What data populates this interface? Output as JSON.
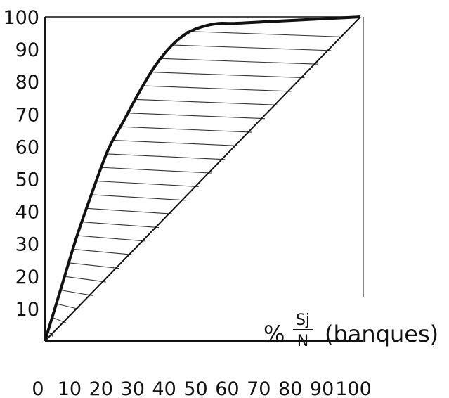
{
  "chart_data": {
    "type": "line",
    "title": "",
    "xlabel": {
      "percent": "%",
      "numerator": "Sj",
      "denominator": "N",
      "suffix": "(banques)"
    },
    "ylabel": "",
    "xlim": [
      0,
      100
    ],
    "ylim": [
      0,
      100
    ],
    "x_ticks": [
      "0",
      "10",
      "20",
      "30",
      "40",
      "50",
      "60",
      "70",
      "80",
      "90",
      "100"
    ],
    "y_ticks": [
      "10",
      "20",
      "30",
      "40",
      "50",
      "60",
      "70",
      "80",
      "90",
      "100"
    ],
    "grid": false,
    "hatched_region": true,
    "series": [
      {
        "kind": "concentration-curve",
        "x": [
          0,
          5,
          10,
          15,
          20,
          25,
          30,
          35,
          40,
          45,
          50,
          55,
          60,
          70,
          80,
          90,
          100
        ],
        "y": [
          0,
          16,
          32,
          46,
          59,
          68,
          77,
          85,
          91,
          95,
          97,
          98,
          98,
          98.5,
          99,
          99.5,
          100
        ]
      },
      {
        "kind": "diagonal",
        "x": [
          0,
          100
        ],
        "y": [
          0,
          100
        ]
      }
    ],
    "colors": {
      "ink": "#111111"
    }
  }
}
